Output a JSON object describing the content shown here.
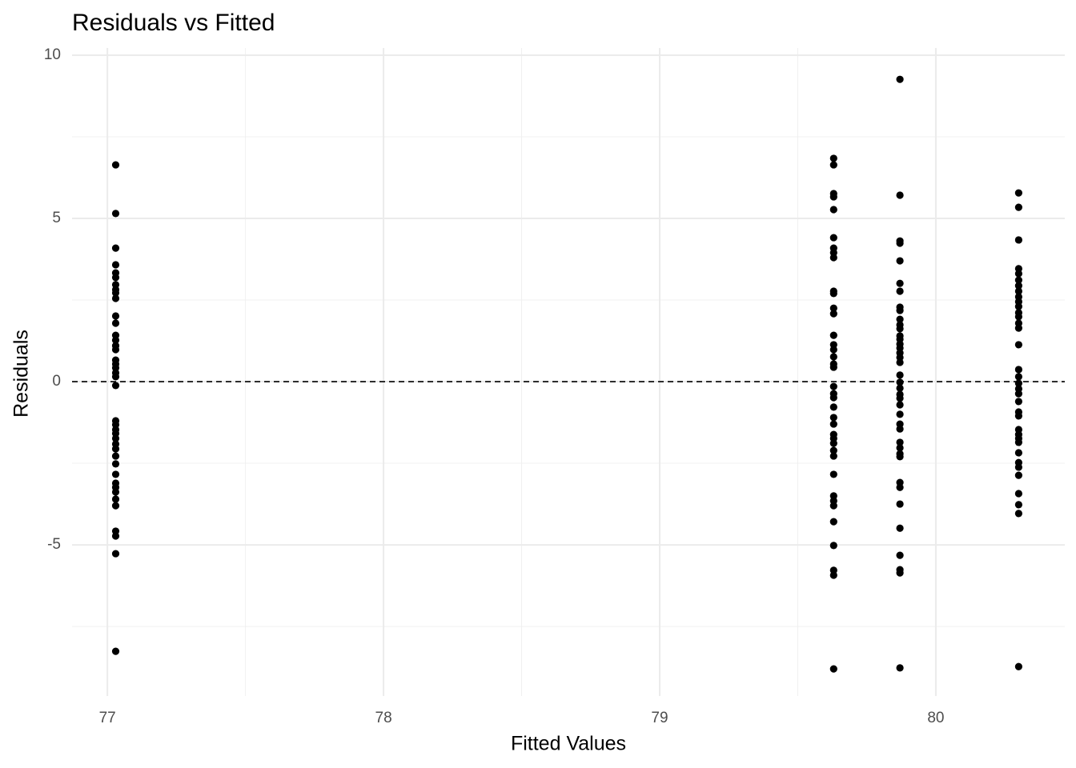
{
  "chart_data": {
    "type": "scatter",
    "title": "Residuals vs Fitted",
    "x_label": "Fitted Values",
    "y_label": "Residuals",
    "color": "#000000",
    "xlim": [
      76.872,
      80.467
    ],
    "ylim": [
      -9.63,
      10.22
    ],
    "xticks": [
      77,
      78,
      79,
      80
    ],
    "yticks": [
      -5,
      0,
      5,
      10
    ],
    "xminor": [
      77.5,
      78.5,
      79.5
    ],
    "yminor": [
      -7.5,
      -2.5,
      2.5,
      7.5
    ],
    "grid": true,
    "hline": 0,
    "hline_dashed": true,
    "x": [
      77.03,
      77.03,
      77.03,
      77.03,
      77.03,
      77.03,
      77.03,
      77.03,
      77.03,
      77.03,
      77.03,
      77.03,
      77.03,
      77.03,
      77.03,
      77.03,
      77.03,
      77.03,
      77.03,
      77.03,
      77.03,
      77.03,
      77.03,
      77.03,
      77.03,
      77.03,
      77.03,
      77.03,
      77.03,
      77.03,
      77.03,
      77.03,
      77.03,
      77.03,
      77.03,
      77.03,
      77.03,
      77.03,
      77.03,
      77.03,
      77.03,
      79.63,
      79.63,
      79.63,
      79.63,
      79.63,
      79.63,
      79.63,
      79.63,
      79.63,
      79.63,
      79.63,
      79.63,
      79.63,
      79.63,
      79.63,
      79.63,
      79.63,
      79.63,
      79.63,
      79.63,
      79.63,
      79.63,
      79.63,
      79.63,
      79.63,
      79.63,
      79.63,
      79.63,
      79.63,
      79.63,
      79.63,
      79.63,
      79.63,
      79.63,
      79.63,
      79.63,
      79.63,
      79.63,
      79.63,
      79.87,
      79.87,
      79.87,
      79.87,
      79.87,
      79.87,
      79.87,
      79.87,
      79.87,
      79.87,
      79.87,
      79.87,
      79.87,
      79.87,
      79.87,
      79.87,
      79.87,
      79.87,
      79.87,
      79.87,
      79.87,
      79.87,
      79.87,
      79.87,
      79.87,
      79.87,
      79.87,
      79.87,
      79.87,
      79.87,
      79.87,
      79.87,
      79.87,
      79.87,
      79.87,
      79.87,
      79.87,
      79.87,
      79.87,
      79.87,
      80.3,
      80.3,
      80.3,
      80.3,
      80.3,
      80.3,
      80.3,
      80.3,
      80.3,
      80.3,
      80.3,
      80.3,
      80.3,
      80.3,
      80.3,
      80.3,
      80.3,
      80.3,
      80.3,
      80.3,
      80.3,
      80.3,
      80.3,
      80.3,
      80.3,
      80.3,
      80.3,
      80.3,
      80.3,
      80.3,
      80.3,
      80.3,
      80.3,
      80.3,
      80.3,
      80.3
    ],
    "values": [
      6.64,
      5.15,
      4.09,
      3.58,
      3.33,
      3.19,
      2.97,
      2.82,
      2.72,
      2.55,
      2.01,
      1.79,
      1.42,
      1.27,
      1.1,
      0.98,
      0.66,
      0.54,
      0.42,
      0.27,
      0.15,
      -0.12,
      -1.2,
      -1.32,
      -1.47,
      -1.59,
      -1.74,
      -1.91,
      -2.06,
      -2.28,
      -2.52,
      -2.84,
      -3.11,
      -3.24,
      -3.38,
      -3.6,
      -3.8,
      -4.58,
      -4.73,
      -5.27,
      -8.26,
      6.84,
      6.64,
      5.76,
      5.66,
      5.27,
      4.41,
      4.09,
      3.95,
      3.8,
      2.77,
      2.7,
      2.25,
      2.08,
      1.42,
      1.13,
      0.98,
      0.76,
      0.54,
      0.44,
      -0.15,
      -0.37,
      -0.49,
      -0.78,
      -1.1,
      -1.3,
      -1.62,
      -1.74,
      -1.89,
      -2.11,
      -2.28,
      -2.84,
      -3.5,
      -3.65,
      -3.8,
      -4.29,
      -5.02,
      -5.78,
      -5.93,
      -8.8,
      9.26,
      5.71,
      4.31,
      4.24,
      3.7,
      3.01,
      2.77,
      2.28,
      2.18,
      1.91,
      1.74,
      1.62,
      1.4,
      1.3,
      1.15,
      1.03,
      0.88,
      0.74,
      0.59,
      0.2,
      -0.02,
      -0.2,
      -0.39,
      -0.51,
      -0.71,
      -1.0,
      -1.3,
      -1.45,
      -1.86,
      -2.03,
      -2.21,
      -2.3,
      -3.09,
      -3.24,
      -3.75,
      -4.49,
      -5.32,
      -5.76,
      -5.86,
      -8.77,
      5.78,
      5.34,
      4.34,
      3.46,
      3.31,
      3.11,
      2.94,
      2.77,
      2.6,
      2.45,
      2.3,
      2.11,
      1.99,
      1.79,
      1.64,
      1.13,
      0.37,
      0.15,
      -0.05,
      -0.22,
      -0.37,
      -0.61,
      -0.93,
      -1.05,
      -1.47,
      -1.62,
      -1.74,
      -1.86,
      -2.18,
      -2.48,
      -2.62,
      -2.87,
      -3.43,
      -3.77,
      -4.04,
      -8.73
    ]
  }
}
